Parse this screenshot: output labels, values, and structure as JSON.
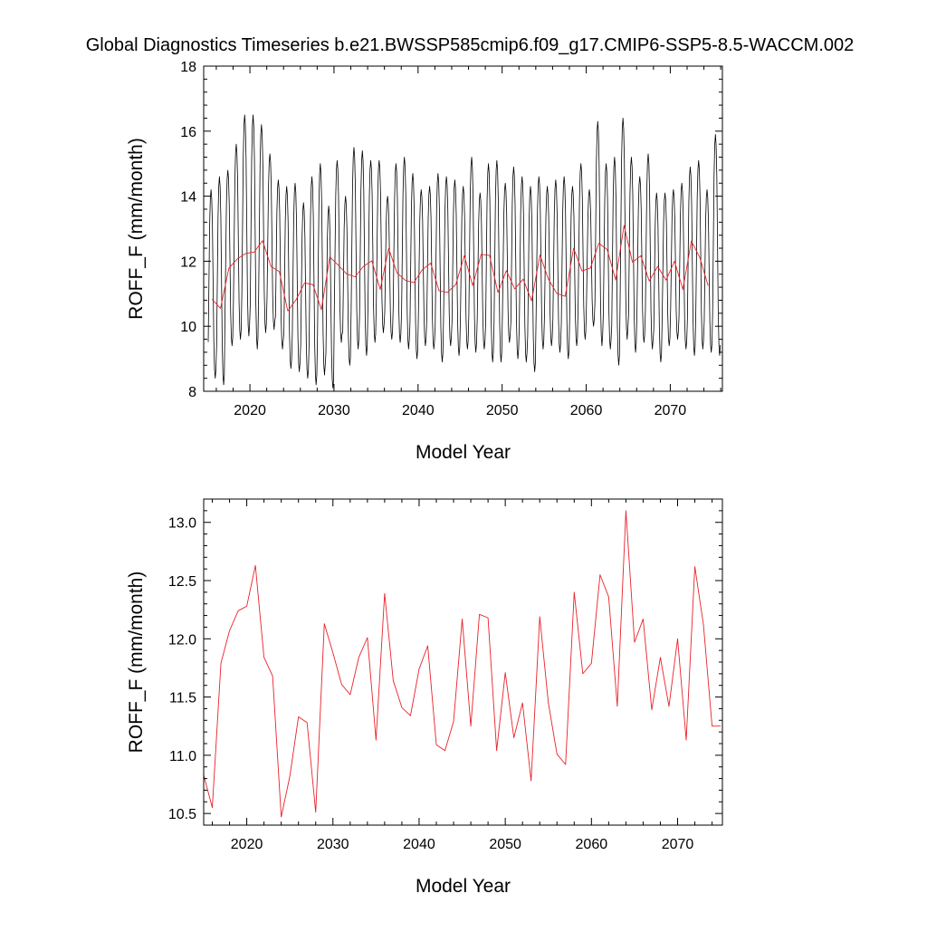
{
  "title": "Global Diagnostics Timeseries b.e21.BWSSP585cmip6.f09_g17.CMIP6-SSP5-8.5-WACCM.002",
  "colors": {
    "monthly": "#000000",
    "annual": "#e8222a",
    "axes": "#000000",
    "background": "#ffffff"
  },
  "chart_data": [
    {
      "type": "line",
      "xlabel": "Model Year",
      "ylabel": "ROFF_F (mm/month)",
      "xlim": [
        2014.5,
        2076.2
      ],
      "ylim": [
        8,
        18
      ],
      "xticks": [
        2020,
        2030,
        2040,
        2050,
        2060,
        2070
      ],
      "xtick_labels": [
        "2020",
        "2030",
        "2040",
        "2050",
        "2060",
        "2070"
      ],
      "yticks": [
        8,
        10,
        12,
        14,
        16,
        18
      ],
      "ytick_labels": [
        "8",
        "10",
        "12",
        "14",
        "16",
        "18"
      ],
      "grid": false,
      "series": [
        {
          "kind": "monthly",
          "color": "#000000",
          "x_start": 2015.04,
          "x_step": 0.08333,
          "annual_peaks": [
            14.2,
            14.6,
            14.8,
            15.6,
            16.5,
            16.5,
            16.2,
            15.3,
            14.5,
            14.3,
            14.4,
            13.8,
            14.6,
            15.0,
            13.7,
            15.1,
            14.0,
            15.5,
            15.4,
            15.1,
            15.1,
            14.0,
            15.0,
            15.2,
            14.7,
            14.2,
            14.3,
            14.7,
            14.6,
            14.5,
            14.3,
            15.2,
            14.1,
            15.0,
            15.1,
            14.4,
            14.9,
            14.6,
            14.3,
            14.6,
            14.3,
            14.5,
            14.6,
            14.3,
            15.0,
            14.2,
            16.3,
            15.0,
            15.2,
            16.4,
            15.2,
            14.6,
            15.3,
            14.1,
            14.1,
            14.2,
            14.4,
            14.9,
            15.1,
            14.2,
            15.9
          ],
          "annual_troughs": [
            8.4,
            8.2,
            9.4,
            9.6,
            9.7,
            9.3,
            9.8,
            9.9,
            9.3,
            8.7,
            8.6,
            8.4,
            8.2,
            8.5,
            8.1,
            9.5,
            8.8,
            9.3,
            9.1,
            9.5,
            9.8,
            9.6,
            9.5,
            9.3,
            9.0,
            9.4,
            9.3,
            8.9,
            9.4,
            9.1,
            9.3,
            9.2,
            9.3,
            8.9,
            8.9,
            9.5,
            9.0,
            8.9,
            8.6,
            9.3,
            9.4,
            9.2,
            9.0,
            9.4,
            9.6,
            10.0,
            9.4,
            9.3,
            8.8,
            9.6,
            9.2,
            9.5,
            9.3,
            8.9,
            9.4,
            9.6,
            9.3,
            9.1,
            9.3,
            9.2,
            9.1
          ]
        },
        {
          "kind": "annual",
          "color": "#e8222a",
          "x": [
            2015.5,
            2016.5,
            2017.5,
            2018.5,
            2019.5,
            2020.5,
            2021.5,
            2022.5,
            2023.5,
            2024.5,
            2025.5,
            2026.5,
            2027.5,
            2028.5,
            2029.5,
            2030.5,
            2031.5,
            2032.5,
            2033.5,
            2034.5,
            2035.5,
            2036.5,
            2037.5,
            2038.5,
            2039.5,
            2040.5,
            2041.5,
            2042.5,
            2043.5,
            2044.5,
            2045.5,
            2046.5,
            2047.5,
            2048.5,
            2049.5,
            2050.5,
            2051.5,
            2052.5,
            2053.5,
            2054.5,
            2055.5,
            2056.5,
            2057.5,
            2058.5,
            2059.5,
            2060.5,
            2061.5,
            2062.5,
            2063.5,
            2064.5,
            2065.5,
            2066.5,
            2067.5,
            2068.5,
            2069.5,
            2070.5,
            2071.5,
            2072.5,
            2073.5,
            2074.5
          ],
          "values": [
            10.83,
            10.55,
            11.79,
            12.07,
            12.24,
            12.28,
            12.63,
            11.84,
            11.68,
            10.47,
            10.82,
            11.33,
            11.28,
            10.51,
            12.13,
            11.88,
            11.61,
            11.52,
            11.84,
            12.01,
            11.13,
            12.39,
            11.64,
            11.41,
            11.34,
            11.74,
            11.94,
            11.09,
            11.04,
            11.29,
            12.17,
            11.25,
            12.21,
            12.18,
            11.04,
            11.71,
            11.15,
            11.45,
            10.78,
            12.19,
            11.45,
            11.01,
            10.92,
            12.4,
            11.7,
            11.79,
            12.55,
            12.36,
            11.42,
            13.1,
            11.97,
            12.17,
            11.39,
            11.84,
            11.42,
            12.0,
            11.13,
            12.62,
            12.12,
            11.25
          ]
        }
      ]
    },
    {
      "type": "line",
      "xlabel": "Model Year",
      "ylabel": "ROFF_F (mm/month)",
      "xlim": [
        2015.0,
        2075.2
      ],
      "ylim": [
        10.4,
        13.2
      ],
      "xticks": [
        2020,
        2030,
        2040,
        2050,
        2060,
        2070
      ],
      "xtick_labels": [
        "2020",
        "2030",
        "2040",
        "2050",
        "2060",
        "2070"
      ],
      "yticks": [
        10.5,
        11.0,
        11.5,
        12.0,
        12.5,
        13.0
      ],
      "ytick_labels": [
        "10.5",
        "11.0",
        "11.5",
        "12.0",
        "12.5",
        "13.0"
      ],
      "grid": false,
      "series": [
        {
          "kind": "annual",
          "color": "#e8222a",
          "x": [
            2015.0,
            2016.0,
            2017.0,
            2018.0,
            2019.0,
            2020.0,
            2021.0,
            2022.0,
            2023.0,
            2024.0,
            2025.0,
            2026.0,
            2027.0,
            2028.0,
            2029.0,
            2030.0,
            2031.0,
            2032.0,
            2033.0,
            2034.0,
            2035.0,
            2036.0,
            2037.0,
            2038.0,
            2039.0,
            2040.0,
            2041.0,
            2042.0,
            2043.0,
            2044.0,
            2045.0,
            2046.0,
            2047.0,
            2048.0,
            2049.0,
            2050.0,
            2051.0,
            2052.0,
            2053.0,
            2054.0,
            2055.0,
            2056.0,
            2057.0,
            2058.0,
            2059.0,
            2060.0,
            2061.0,
            2062.0,
            2063.0,
            2064.0,
            2065.0,
            2066.0,
            2067.0,
            2068.0,
            2069.0,
            2070.0,
            2071.0,
            2072.0,
            2073.0,
            2074.0,
            2075.0
          ],
          "values": [
            10.83,
            10.55,
            11.79,
            12.07,
            12.24,
            12.28,
            12.63,
            11.84,
            11.68,
            10.47,
            10.82,
            11.33,
            11.28,
            10.51,
            12.13,
            11.88,
            11.61,
            11.52,
            11.84,
            12.01,
            11.13,
            12.39,
            11.64,
            11.41,
            11.34,
            11.74,
            11.94,
            11.09,
            11.04,
            11.29,
            12.17,
            11.25,
            12.21,
            12.18,
            11.04,
            11.71,
            11.15,
            11.45,
            10.78,
            12.19,
            11.45,
            11.01,
            10.92,
            12.4,
            11.7,
            11.79,
            12.55,
            12.36,
            11.42,
            13.1,
            11.97,
            12.17,
            11.39,
            11.84,
            11.42,
            12.0,
            11.13,
            12.62,
            12.12,
            11.25,
            11.25
          ]
        }
      ]
    }
  ]
}
